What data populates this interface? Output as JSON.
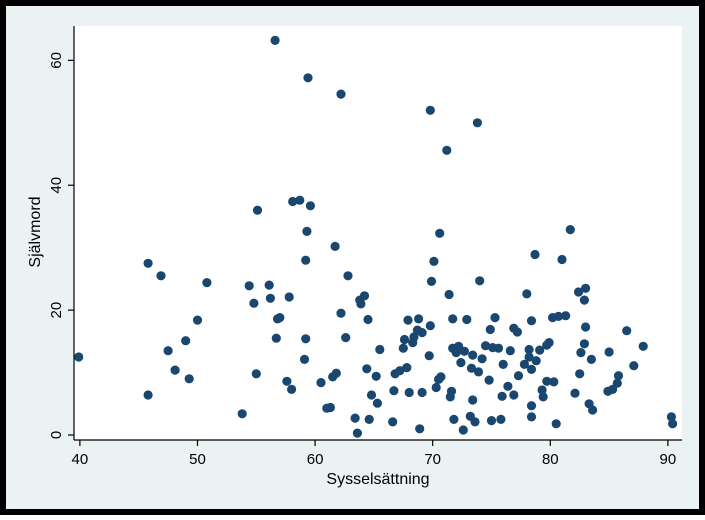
{
  "chart_data": {
    "type": "scatter",
    "title": "",
    "xlabel": "Sysselsättning",
    "ylabel": "Självmord",
    "xlim": [
      39.5,
      91.2
    ],
    "ylim": [
      -0.8,
      65.5
    ],
    "x_ticks": [
      40,
      50,
      60,
      70,
      80,
      90
    ],
    "y_ticks": [
      0,
      20,
      40,
      60
    ],
    "grid": "none",
    "colors": {
      "outer_background": "#eaf2f3",
      "plot_background": "#ffffff",
      "marker": "#1a476f",
      "axis": "#000000"
    },
    "points": [
      [
        39.9,
        12.5
      ],
      [
        45.8,
        27.5
      ],
      [
        45.8,
        6.4
      ],
      [
        46.9,
        25.5
      ],
      [
        47.5,
        13.5
      ],
      [
        48.1,
        10.4
      ],
      [
        49.0,
        15.1
      ],
      [
        49.3,
        9.0
      ],
      [
        50.0,
        18.4
      ],
      [
        50.8,
        24.4
      ],
      [
        53.8,
        3.4
      ],
      [
        54.4,
        23.9
      ],
      [
        54.8,
        21.1
      ],
      [
        55.0,
        9.8
      ],
      [
        55.1,
        36.0
      ],
      [
        56.1,
        24.0
      ],
      [
        56.2,
        21.9
      ],
      [
        56.6,
        63.2
      ],
      [
        56.7,
        15.5
      ],
      [
        56.8,
        18.6
      ],
      [
        57.0,
        18.8
      ],
      [
        57.6,
        8.6
      ],
      [
        57.8,
        22.1
      ],
      [
        58.0,
        7.3
      ],
      [
        58.1,
        37.4
      ],
      [
        58.7,
        37.6
      ],
      [
        59.1,
        12.1
      ],
      [
        59.2,
        28.0
      ],
      [
        59.2,
        15.4
      ],
      [
        59.3,
        32.6
      ],
      [
        59.4,
        57.2
      ],
      [
        59.6,
        36.7
      ],
      [
        60.5,
        8.4
      ],
      [
        61.0,
        4.3
      ],
      [
        61.3,
        4.4
      ],
      [
        61.5,
        9.3
      ],
      [
        61.7,
        30.2
      ],
      [
        61.8,
        9.9
      ],
      [
        62.2,
        54.6
      ],
      [
        62.2,
        19.5
      ],
      [
        62.6,
        15.6
      ],
      [
        62.8,
        25.5
      ],
      [
        63.4,
        2.7
      ],
      [
        63.6,
        0.3
      ],
      [
        63.8,
        21.6
      ],
      [
        63.9,
        21.0
      ],
      [
        64.2,
        22.3
      ],
      [
        64.4,
        10.6
      ],
      [
        64.5,
        18.5
      ],
      [
        64.6,
        2.5
      ],
      [
        64.8,
        6.4
      ],
      [
        65.2,
        9.4
      ],
      [
        65.3,
        5.1
      ],
      [
        65.5,
        13.7
      ],
      [
        66.6,
        2.1
      ],
      [
        66.7,
        7.1
      ],
      [
        66.8,
        9.8
      ],
      [
        67.2,
        10.3
      ],
      [
        67.5,
        13.9
      ],
      [
        67.6,
        15.3
      ],
      [
        67.8,
        10.8
      ],
      [
        67.9,
        18.4
      ],
      [
        68.0,
        6.8
      ],
      [
        68.3,
        14.8
      ],
      [
        68.4,
        15.7
      ],
      [
        68.7,
        16.8
      ],
      [
        68.8,
        18.6
      ],
      [
        68.9,
        1.0
      ],
      [
        69.1,
        16.4
      ],
      [
        69.1,
        6.8
      ],
      [
        69.7,
        12.7
      ],
      [
        69.8,
        17.5
      ],
      [
        69.8,
        52.0
      ],
      [
        69.9,
        24.6
      ],
      [
        70.1,
        27.8
      ],
      [
        70.3,
        7.6
      ],
      [
        70.5,
        8.9
      ],
      [
        70.6,
        32.3
      ],
      [
        70.7,
        9.3
      ],
      [
        71.2,
        45.6
      ],
      [
        71.4,
        22.5
      ],
      [
        71.5,
        6.1
      ],
      [
        71.6,
        7.0
      ],
      [
        71.7,
        13.9
      ],
      [
        71.7,
        18.6
      ],
      [
        71.8,
        2.5
      ],
      [
        72.0,
        13.2
      ],
      [
        72.2,
        14.2
      ],
      [
        72.4,
        11.6
      ],
      [
        72.6,
        0.8
      ],
      [
        72.7,
        13.4
      ],
      [
        72.9,
        18.5
      ],
      [
        73.2,
        3.0
      ],
      [
        73.3,
        10.7
      ],
      [
        73.4,
        12.8
      ],
      [
        73.4,
        5.6
      ],
      [
        73.6,
        2.1
      ],
      [
        73.8,
        50.0
      ],
      [
        73.9,
        10.1
      ],
      [
        74.0,
        24.7
      ],
      [
        74.2,
        12.2
      ],
      [
        74.5,
        14.3
      ],
      [
        74.8,
        8.8
      ],
      [
        74.9,
        16.9
      ],
      [
        75.0,
        2.3
      ],
      [
        75.1,
        14.0
      ],
      [
        75.3,
        18.8
      ],
      [
        75.6,
        13.9
      ],
      [
        75.8,
        2.5
      ],
      [
        75.9,
        6.2
      ],
      [
        76.0,
        11.3
      ],
      [
        76.4,
        7.8
      ],
      [
        76.6,
        13.5
      ],
      [
        76.9,
        6.4
      ],
      [
        76.9,
        17.1
      ],
      [
        77.2,
        16.5
      ],
      [
        77.3,
        9.5
      ],
      [
        77.8,
        11.3
      ],
      [
        78.0,
        22.6
      ],
      [
        78.2,
        13.7
      ],
      [
        78.2,
        12.5
      ],
      [
        78.4,
        2.9
      ],
      [
        78.4,
        4.7
      ],
      [
        78.4,
        10.5
      ],
      [
        78.4,
        18.3
      ],
      [
        78.7,
        28.9
      ],
      [
        78.8,
        11.9
      ],
      [
        79.1,
        13.6
      ],
      [
        79.3,
        7.2
      ],
      [
        79.4,
        6.1
      ],
      [
        79.7,
        14.4
      ],
      [
        79.7,
        8.6
      ],
      [
        79.9,
        14.8
      ],
      [
        80.2,
        18.8
      ],
      [
        80.3,
        8.5
      ],
      [
        80.5,
        1.8
      ],
      [
        80.7,
        19.0
      ],
      [
        81.0,
        28.1
      ],
      [
        81.3,
        19.1
      ],
      [
        81.7,
        32.9
      ],
      [
        82.1,
        6.7
      ],
      [
        82.4,
        22.9
      ],
      [
        82.5,
        9.8
      ],
      [
        82.6,
        13.2
      ],
      [
        82.9,
        21.6
      ],
      [
        82.9,
        14.6
      ],
      [
        83.0,
        17.3
      ],
      [
        83.0,
        23.5
      ],
      [
        83.3,
        5.0
      ],
      [
        83.5,
        12.1
      ],
      [
        83.6,
        4.0
      ],
      [
        84.9,
        7.0
      ],
      [
        85.0,
        13.3
      ],
      [
        85.3,
        7.3
      ],
      [
        85.7,
        8.3
      ],
      [
        85.8,
        9.5
      ],
      [
        86.5,
        16.7
      ],
      [
        87.1,
        11.1
      ],
      [
        87.9,
        14.2
      ],
      [
        90.3,
        2.9
      ],
      [
        90.4,
        1.8
      ]
    ]
  }
}
